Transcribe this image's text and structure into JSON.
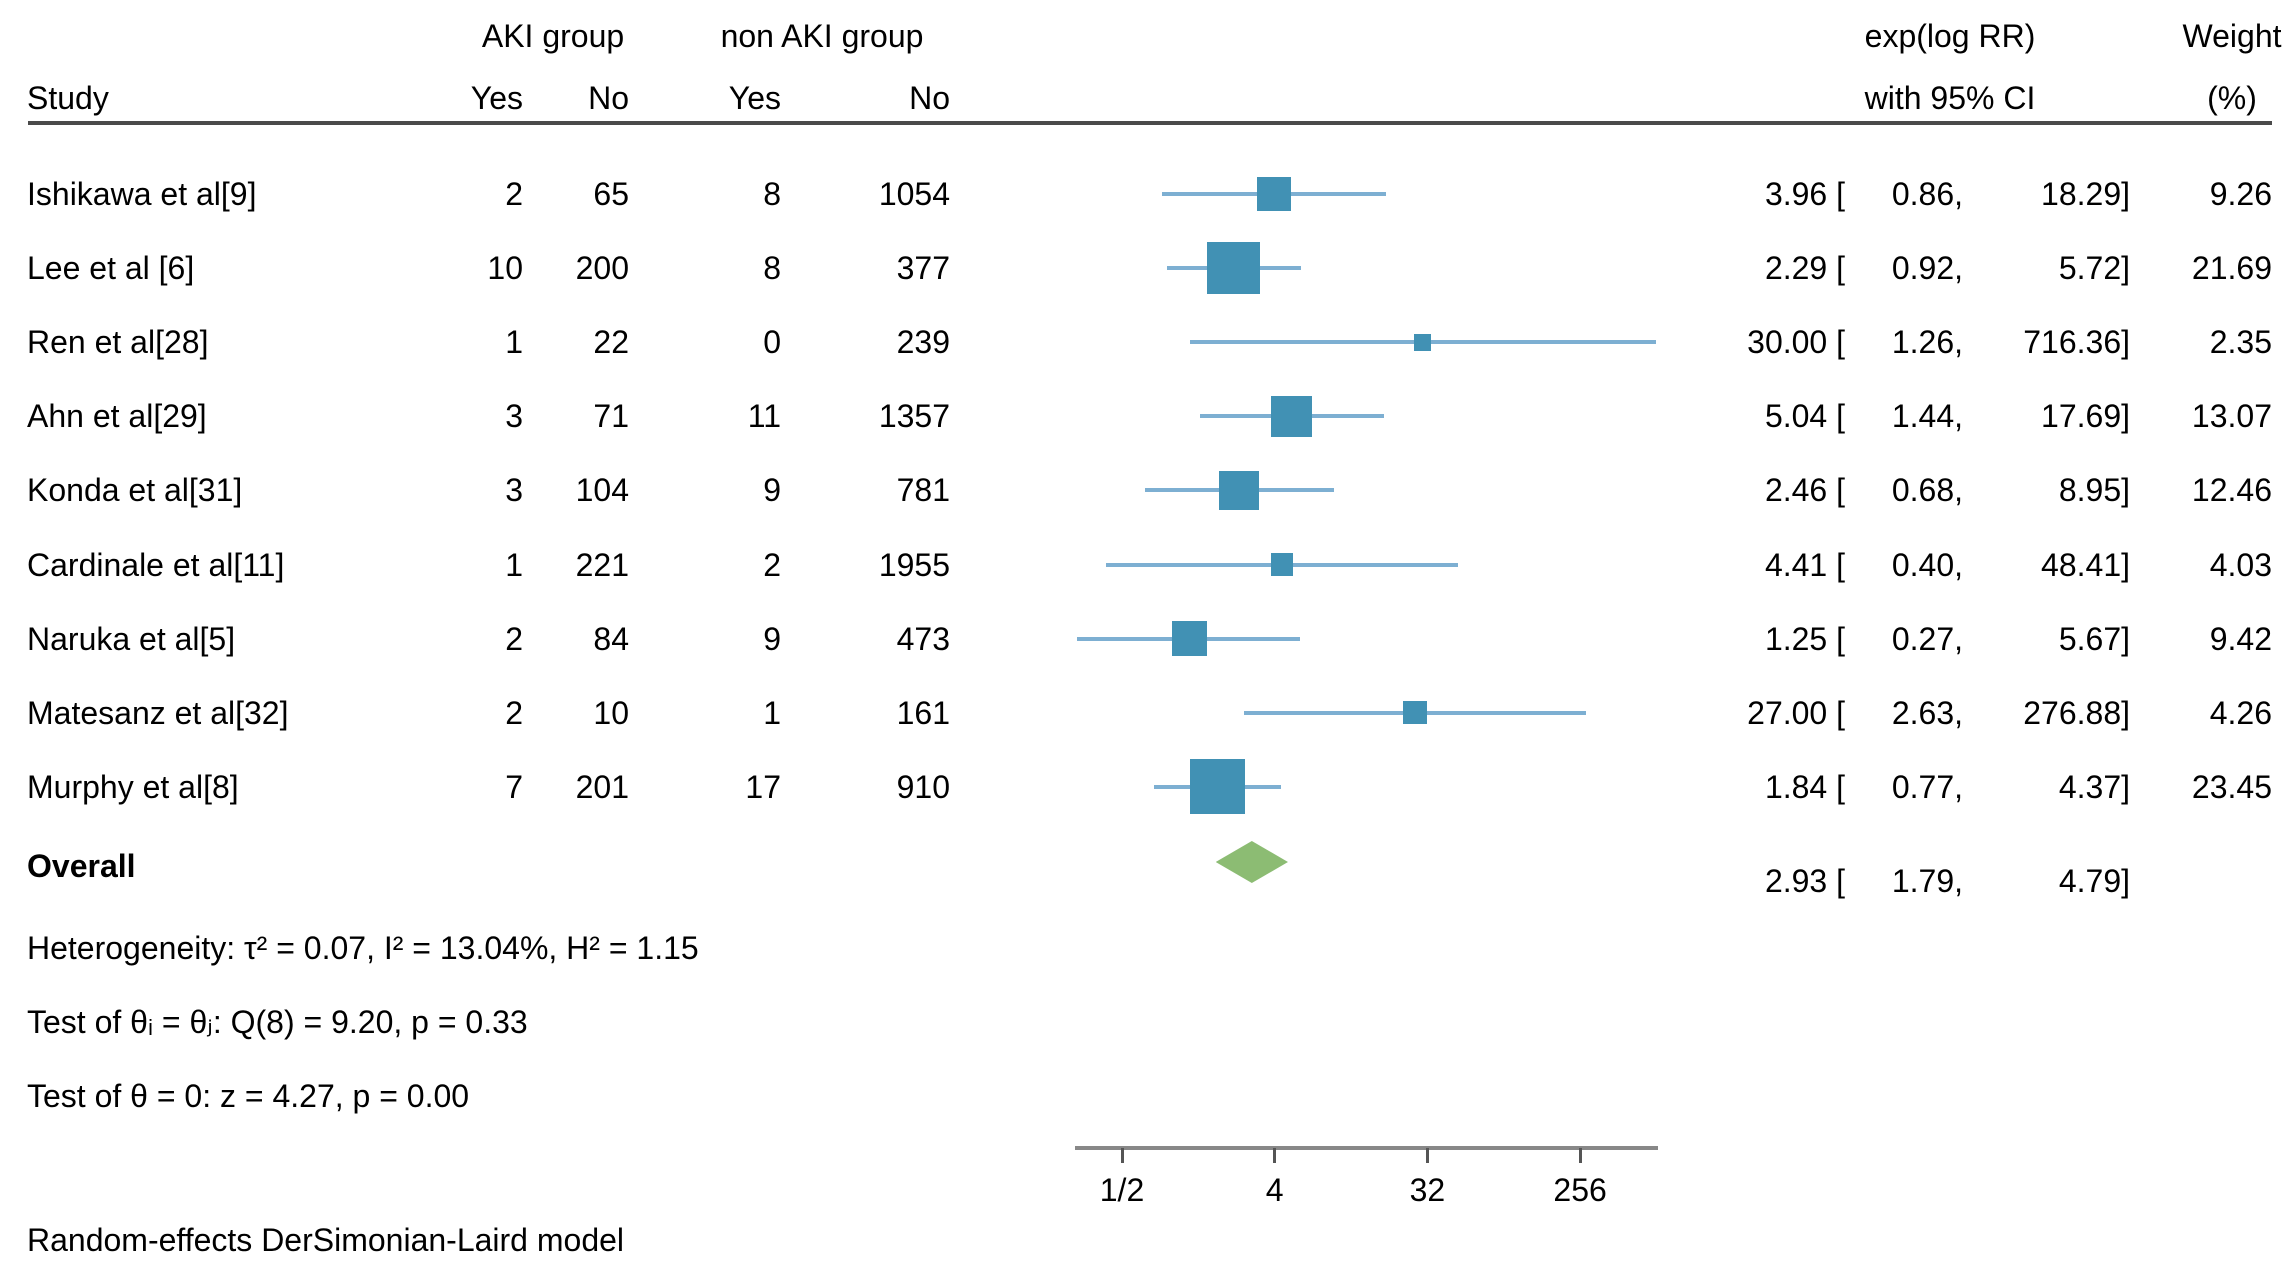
{
  "chart_data": {
    "type": "forest",
    "study_col_label": "Study",
    "group1_label": "AKI group",
    "group2_label": "non AKI group",
    "subcols": {
      "g1_yes": "Yes",
      "g1_no": "No",
      "g2_yes": "Yes",
      "g2_no": "No"
    },
    "effect_label": "exp(log RR)",
    "effect_sublabel": "with 95% CI",
    "weight_label": "Weight",
    "weight_sublabel": "(%)",
    "studies": [
      {
        "name": "Ishikawa et al[9]",
        "aki_yes": 2,
        "aki_no": 65,
        "nonaki_yes": 8,
        "nonaki_no": 1054,
        "est": 3.96,
        "low": 0.86,
        "high": 18.29,
        "weight": 9.26
      },
      {
        "name": "Lee et al [6]",
        "aki_yes": 10,
        "aki_no": 200,
        "nonaki_yes": 8,
        "nonaki_no": 377,
        "est": 2.29,
        "low": 0.92,
        "high": 5.72,
        "weight": 21.69
      },
      {
        "name": "Ren et al[28]",
        "aki_yes": 1,
        "aki_no": 22,
        "nonaki_yes": 0,
        "nonaki_no": 239,
        "est": 30.0,
        "low": 1.26,
        "high": 716.36,
        "weight": 2.35
      },
      {
        "name": "Ahn et al[29]",
        "aki_yes": 3,
        "aki_no": 71,
        "nonaki_yes": 11,
        "nonaki_no": 1357,
        "est": 5.04,
        "low": 1.44,
        "high": 17.69,
        "weight": 13.07
      },
      {
        "name": "Konda et al[31]",
        "aki_yes": 3,
        "aki_no": 104,
        "nonaki_yes": 9,
        "nonaki_no": 781,
        "est": 2.46,
        "low": 0.68,
        "high": 8.95,
        "weight": 12.46
      },
      {
        "name": "Cardinale et al[11]",
        "aki_yes": 1,
        "aki_no": 221,
        "nonaki_yes": 2,
        "nonaki_no": 1955,
        "est": 4.41,
        "low": 0.4,
        "high": 48.41,
        "weight": 4.03
      },
      {
        "name": "Naruka et al[5]",
        "aki_yes": 2,
        "aki_no": 84,
        "nonaki_yes": 9,
        "nonaki_no": 473,
        "est": 1.25,
        "low": 0.27,
        "high": 5.67,
        "weight": 9.42
      },
      {
        "name": "Matesanz et al[32]",
        "aki_yes": 2,
        "aki_no": 10,
        "nonaki_yes": 1,
        "nonaki_no": 161,
        "est": 27.0,
        "low": 2.63,
        "high": 276.88,
        "weight": 4.26
      },
      {
        "name": "Murphy et al[8]",
        "aki_yes": 7,
        "aki_no": 201,
        "nonaki_yes": 17,
        "nonaki_no": 910,
        "est": 1.84,
        "low": 0.77,
        "high": 4.37,
        "weight": 23.45
      }
    ],
    "overall": {
      "label": "Overall",
      "est": 2.93,
      "low": 1.79,
      "high": 4.79
    },
    "annotations": {
      "heterogeneity": "Heterogeneity: τ² = 0.07, I² = 13.04%, H² = 1.15",
      "test_theta_ij": "Test of θᵢ = θⱼ: Q(8) = 9.20, p = 0.33",
      "test_theta_zero": "Test of θ = 0: z = 4.27, p = 0.00",
      "model_footnote": "Random-effects DerSimonian-Laird model"
    },
    "axis": {
      "scale": "log",
      "ticks": [
        {
          "label": "1/2",
          "value": 0.5
        },
        {
          "label": "4",
          "value": 4
        },
        {
          "label": "32",
          "value": 32
        },
        {
          "label": "256",
          "value": 256
        }
      ]
    },
    "colors": {
      "marker_square": "#4191b4",
      "ci_line": "#7dafd2",
      "overall_diamond": "#8cbc73",
      "header_rule": "#4a4a4a",
      "axis_line": "#888888"
    }
  }
}
